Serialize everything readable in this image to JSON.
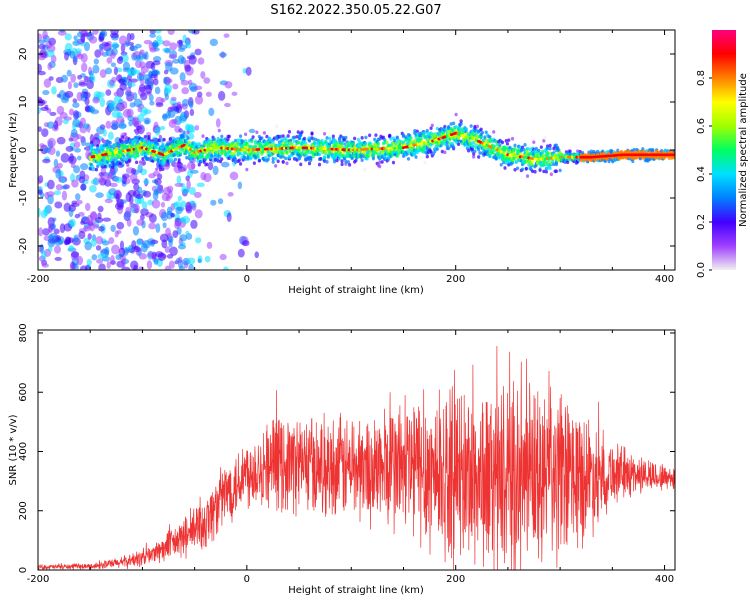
{
  "title": "S162.2022.350.05.22.G07",
  "chart_data": [
    {
      "type": "heatmap",
      "xlabel": "Height of straight line (km)",
      "ylabel": "Frequency (Hz)",
      "xlim": [
        -200,
        410
      ],
      "ylim": [
        -25,
        25
      ],
      "xticks": [
        -200,
        0,
        200,
        400
      ],
      "yticks": [
        -20,
        -10,
        0,
        10,
        20
      ],
      "colorbar": {
        "label": "Normalized spectral amplitude",
        "range": [
          0,
          1
        ],
        "ticks": [
          0.0,
          0.2,
          0.4,
          0.6,
          0.8
        ],
        "tick_labels": [
          "0.0",
          "0.2",
          "0.4",
          "0.6",
          "0.8"
        ],
        "colors": [
          "#f0f0f0",
          "#a040ff",
          "#4000ff",
          "#0080ff",
          "#00e0ff",
          "#00ff60",
          "#a0ff00",
          "#ffff00",
          "#ff8000",
          "#ff0000",
          "#ff0080"
        ]
      },
      "ridge": {
        "x": [
          -150,
          -100,
          -80,
          -60,
          -50,
          -30,
          0,
          50,
          100,
          150,
          180,
          200,
          220,
          250,
          280,
          300,
          330,
          360,
          410
        ],
        "freq_hz": [
          -1.5,
          0.5,
          -1,
          1,
          -0.5,
          0.5,
          0,
          0.5,
          0,
          0.5,
          2,
          3.5,
          2,
          -1,
          -2,
          -1.5,
          -1.5,
          -1,
          -1
        ]
      }
    },
    {
      "type": "line",
      "xlabel": "Height of straight line (km)",
      "ylabel": "SNR (10 * v/v)",
      "xlim": [
        -200,
        410
      ],
      "ylim": [
        0,
        810
      ],
      "xticks": [
        -200,
        0,
        200,
        400
      ],
      "yticks": [
        0,
        200,
        400,
        600,
        800
      ],
      "color": "#ee3333",
      "envelope": {
        "x": [
          -200,
          -150,
          -120,
          -100,
          -80,
          -60,
          -40,
          -20,
          0,
          20,
          50,
          80,
          120,
          150,
          200,
          250,
          300,
          330,
          350,
          380,
          410
        ],
        "mean": [
          10,
          12,
          25,
          40,
          70,
          110,
          160,
          260,
          330,
          360,
          360,
          350,
          340,
          350,
          320,
          300,
          310,
          320,
          330,
          320,
          310
        ],
        "spread": [
          8,
          10,
          20,
          30,
          45,
          70,
          100,
          110,
          120,
          150,
          170,
          170,
          190,
          250,
          300,
          320,
          300,
          200,
          110,
          60,
          40
        ]
      }
    }
  ]
}
